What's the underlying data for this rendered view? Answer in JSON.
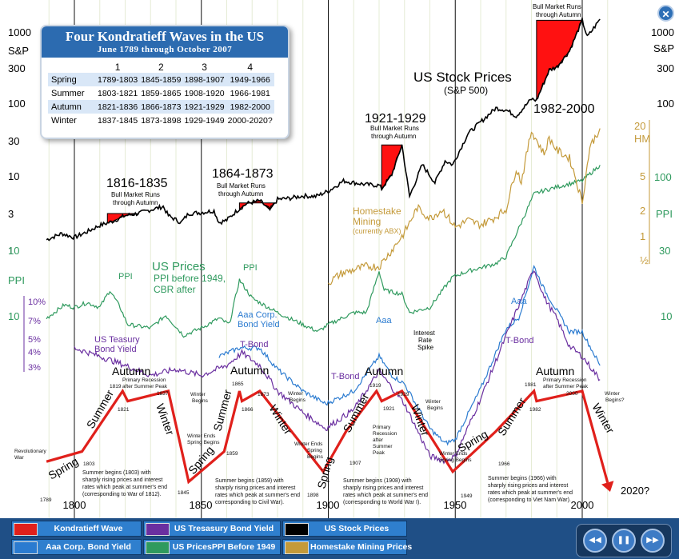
{
  "info_box": {
    "title": "Four Kondratieff Waves in the US",
    "subtitle": "June 1789 through October 2007",
    "columns": [
      "1",
      "2",
      "3",
      "4"
    ],
    "rows": [
      {
        "season": "Spring",
        "values": [
          "1789-1803",
          "1845-1859",
          "1898-1907",
          "1949-1966"
        ]
      },
      {
        "season": "Summer",
        "values": [
          "1803-1821",
          "1859-1865",
          "1908-1920",
          "1966-1981"
        ]
      },
      {
        "season": "Autumn",
        "values": [
          "1821-1836",
          "1866-1873",
          "1921-1929",
          "1982-2000"
        ]
      },
      {
        "season": "Winter",
        "values": [
          "1837-1845",
          "1873-1898",
          "1929-1949",
          "2000-2020?"
        ]
      }
    ]
  },
  "axes": {
    "sp_label": "S&P",
    "ppi_label": "PPI",
    "hm_label": "HM",
    "sp_ticks": [
      "1000",
      "300",
      "100",
      "30",
      "10",
      "3",
      "1"
    ],
    "ppi_tick": "10",
    "ppi_right_ticks": [
      "100",
      "30"
    ],
    "hm_ticks": [
      "20",
      "5",
      "2",
      "1",
      "½"
    ],
    "yield_ticks": [
      "10%",
      "7%",
      "5%",
      "4%",
      "3%"
    ],
    "x_ticks": [
      "1800",
      "1850",
      "1900",
      "1950",
      "2000"
    ]
  },
  "annotations": {
    "us_stock_prices": "US Stock Prices",
    "sp500": "(S&P 500)",
    "us_prices": "US Prices",
    "ppi_before": "PPI before 1949,",
    "cbr_after": "CBR after",
    "homestake": "Homestake",
    "mining": "Mining",
    "currently_abx": "(currently ABX)",
    "aaa_corp": "Aaa Corp.",
    "bond_yield": "Bond Yield",
    "us_treasury": "US Teasury",
    "tbond": "T-Bond",
    "aaa": "Aaa",
    "ppi": "PPI",
    "interest": "Interest",
    "rate": "Rate",
    "spike": "Spike",
    "bull_market_runs": "Bull Market Runs",
    "through_autumn": "through Autumn",
    "q2020": "2020?"
  },
  "bull_markets": [
    "1816-1835",
    "1864-1873",
    "1921-1929",
    "1982-2000"
  ],
  "seasons": {
    "spring": "Spring",
    "summer": "Summer",
    "autumn": "Autumn",
    "winter": "Winter"
  },
  "wave_labels": {
    "revolutionary": "Revolutionary",
    "war": "War",
    "y1789": "1789",
    "y1803": "1803",
    "y1819": "1819",
    "y1821": "1821",
    "y1837": "1837",
    "y1845": "1845",
    "y1859": "1859",
    "y1865": "1865",
    "y1866": "1866",
    "y1873": "1873",
    "y1898": "1898",
    "y1907": "1907",
    "y1919": "1919",
    "y1921": "1921",
    "y1929": "1929",
    "y1949": "1949",
    "y1966": "1966",
    "y1981": "1981",
    "y1982": "1982",
    "y2000": "2000",
    "primary_recession": "Primary Recession",
    "after_summer_peak": "after Summer Peak",
    "winter": "Winter",
    "begins": "Begins",
    "begins_q": "Begins?",
    "winter_ends": "Winter Ends",
    "spring_begins": "Spring Begins",
    "spring": "Spring",
    "primary": "Primary",
    "recession": "Recession",
    "after": "after",
    "summer": "Summer",
    "peak": "Peak",
    "s1a": "Summer begins (1803) with",
    "s1b": "sharply rising prices and interest",
    "s1c": "rates which peak at summer's end",
    "s1d": "(corresponding to War of 1812).",
    "s2a": "Summer begins (1859) with",
    "s2b": "sharply rising prices and interest",
    "s2c": "rates which peak at summer's end",
    "s2d": "corresponding to Civil War).",
    "s3a": "Summer begins (1908) with",
    "s3b": "sharply rising prices and interest",
    "s3c": "rates which peak at summer's end",
    "s3d": "(corresponding to World War I).",
    "s4a": "Summer begins (1966) with",
    "s4b": "sharply rising prices and interest",
    "s4c": "rates which peak at summer's end",
    "s4d": "(corresponding to Viet Nam War)."
  },
  "legend": [
    {
      "label": "Kondratieff Wave",
      "color": "#e0201b"
    },
    {
      "label": "US Tresasury Bond Yield",
      "color": "#6a2fa0"
    },
    {
      "label": "US Stock Prices",
      "color": "#000000"
    },
    {
      "label": "Aaa Corp. Bond Yield",
      "color": "#2b7bd0"
    },
    {
      "label": "US PricesPPI Before 1949",
      "color": "#2f9a5e"
    },
    {
      "label": "Homestake Mining Prices",
      "color": "#c49a3a"
    }
  ],
  "controls": {
    "rewind": "◀◀",
    "pause": "❚❚",
    "forward": "▶▶",
    "close": "✕"
  },
  "chart_data": {
    "type": "line",
    "x_range": [
      1789,
      2007
    ],
    "scale": "log",
    "series": [
      {
        "name": "US Stock Prices",
        "axis": "S&P",
        "color": "#000000",
        "points": [
          [
            1789,
            1.4
          ],
          [
            1795,
            1.7
          ],
          [
            1800,
            1.5
          ],
          [
            1805,
            1.8
          ],
          [
            1810,
            2.2
          ],
          [
            1815,
            2.5
          ],
          [
            1820,
            3.0
          ],
          [
            1825,
            3.2
          ],
          [
            1830,
            3.6
          ],
          [
            1835,
            4.0
          ],
          [
            1837,
            3.0
          ],
          [
            1842,
            2.4
          ],
          [
            1845,
            3.2
          ],
          [
            1850,
            3.3
          ],
          [
            1855,
            3.5
          ],
          [
            1857,
            2.4
          ],
          [
            1860,
            2.6
          ],
          [
            1864,
            3.5
          ],
          [
            1868,
            4.4
          ],
          [
            1873,
            4.8
          ],
          [
            1877,
            3.6
          ],
          [
            1880,
            5.0
          ],
          [
            1885,
            5.2
          ],
          [
            1890,
            5.6
          ],
          [
            1895,
            5.5
          ],
          [
            1900,
            6.5
          ],
          [
            1906,
            9.0
          ],
          [
            1910,
            8.5
          ],
          [
            1915,
            8.0
          ],
          [
            1920,
            7.8
          ],
          [
            1921,
            7.0
          ],
          [
            1925,
            11
          ],
          [
            1929,
            28
          ],
          [
            1932,
            5.5
          ],
          [
            1937,
            15
          ],
          [
            1942,
            8.5
          ],
          [
            1946,
            17
          ],
          [
            1949,
            15
          ],
          [
            1955,
            40
          ],
          [
            1960,
            58
          ],
          [
            1966,
            90
          ],
          [
            1970,
            85
          ],
          [
            1974,
            70
          ],
          [
            1980,
            120
          ],
          [
            1982,
            115
          ],
          [
            1987,
            300
          ],
          [
            1990,
            330
          ],
          [
            1995,
            550
          ],
          [
            2000,
            1450
          ],
          [
            2002,
            850
          ],
          [
            2007,
            1500
          ]
        ]
      },
      {
        "name": "US Prices",
        "axis": "PPI",
        "color": "#2f9a5e",
        "points": [
          [
            1789,
            10
          ],
          [
            1796,
            12.5
          ],
          [
            1800,
            12
          ],
          [
            1805,
            13
          ],
          [
            1810,
            12
          ],
          [
            1814,
            16
          ],
          [
            1818,
            12
          ],
          [
            1821,
            9
          ],
          [
            1830,
            8.5
          ],
          [
            1836,
            10.5
          ],
          [
            1843,
            7.5
          ],
          [
            1850,
            8.5
          ],
          [
            1857,
            10
          ],
          [
            1861,
            9
          ],
          [
            1865,
            19
          ],
          [
            1870,
            14
          ],
          [
            1873,
            13
          ],
          [
            1880,
            11
          ],
          [
            1890,
            9
          ],
          [
            1896,
            8
          ],
          [
            1900,
            9
          ],
          [
            1910,
            11
          ],
          [
            1915,
            11
          ],
          [
            1920,
            22
          ],
          [
            1922,
            16
          ],
          [
            1929,
            15
          ],
          [
            1932,
            11
          ],
          [
            1940,
            12
          ],
          [
            1945,
            16
          ],
          [
            1949,
            20
          ],
          [
            1955,
            22
          ],
          [
            1966,
            25
          ],
          [
            1970,
            28
          ],
          [
            1975,
            45
          ],
          [
            1981,
            80
          ],
          [
            1985,
            85
          ],
          [
            1990,
            90
          ],
          [
            1995,
            95
          ],
          [
            2000,
            100
          ],
          [
            2007,
            130
          ]
        ]
      },
      {
        "name": "Aaa Corp. Bond Yield",
        "axis": "Yield",
        "color": "#2b7bd0",
        "points": [
          [
            1857,
            6.0
          ],
          [
            1865,
            6.5
          ],
          [
            1873,
            6.5
          ],
          [
            1880,
            5.3
          ],
          [
            1890,
            4.3
          ],
          [
            1899,
            3.8
          ],
          [
            1910,
            4.3
          ],
          [
            1920,
            6.0
          ],
          [
            1925,
            5.0
          ],
          [
            1930,
            4.6
          ],
          [
            1940,
            3.0
          ],
          [
            1946,
            2.6
          ],
          [
            1950,
            2.7
          ],
          [
            1960,
            4.4
          ],
          [
            1970,
            7.8
          ],
          [
            1975,
            8.7
          ],
          [
            1981,
            14.2
          ],
          [
            1985,
            11.4
          ],
          [
            1990,
            9.3
          ],
          [
            1995,
            7.6
          ],
          [
            2000,
            7.6
          ],
          [
            2007,
            5.5
          ]
        ]
      },
      {
        "name": "US Tresasury Bond Yield",
        "axis": "Yield",
        "color": "#6a2fa0",
        "points": [
          [
            1800,
            6.5
          ],
          [
            1810,
            6.0
          ],
          [
            1820,
            5.5
          ],
          [
            1830,
            5.0
          ],
          [
            1840,
            5.3
          ],
          [
            1850,
            5.0
          ],
          [
            1860,
            5.5
          ],
          [
            1866,
            6.2
          ],
          [
            1873,
            5.5
          ],
          [
            1880,
            4.3
          ],
          [
            1890,
            3.5
          ],
          [
            1899,
            3.0
          ],
          [
            1910,
            3.6
          ],
          [
            1920,
            5.2
          ],
          [
            1930,
            3.8
          ],
          [
            1940,
            2.3
          ],
          [
            1946,
            2.2
          ],
          [
            1950,
            2.3
          ],
          [
            1960,
            4.0
          ],
          [
            1970,
            7.3
          ],
          [
            1981,
            13.9
          ],
          [
            1985,
            10.6
          ],
          [
            1990,
            8.6
          ],
          [
            1995,
            6.6
          ],
          [
            2000,
            6.0
          ],
          [
            2007,
            4.8
          ]
        ]
      },
      {
        "name": "Homestake Mining Prices",
        "axis": "HM",
        "color": "#c49a3a",
        "points": [
          [
            1900,
            0.4
          ],
          [
            1905,
            0.5
          ],
          [
            1910,
            0.55
          ],
          [
            1915,
            0.6
          ],
          [
            1920,
            0.6
          ],
          [
            1925,
            0.9
          ],
          [
            1930,
            1.4
          ],
          [
            1935,
            2.6
          ],
          [
            1940,
            2.0
          ],
          [
            1945,
            2.5
          ],
          [
            1950,
            1.6
          ],
          [
            1955,
            1.9
          ],
          [
            1960,
            1.7
          ],
          [
            1965,
            2.0
          ],
          [
            1970,
            2.5
          ],
          [
            1974,
            7
          ],
          [
            1976,
            5
          ],
          [
            1980,
            18
          ],
          [
            1985,
            10
          ],
          [
            1987,
            15
          ],
          [
            1990,
            11
          ],
          [
            1995,
            9
          ],
          [
            1997,
            6
          ],
          [
            2000,
            3
          ],
          [
            2003,
            12
          ],
          [
            2007,
            19
          ]
        ]
      }
    ],
    "wave": [
      [
        1789,
        3
      ],
      [
        1803,
        4
      ],
      [
        1819,
        10
      ],
      [
        1821,
        9
      ],
      [
        1837,
        10
      ],
      [
        1845,
        1
      ],
      [
        1859,
        4
      ],
      [
        1865,
        10
      ],
      [
        1866,
        9
      ],
      [
        1873,
        10
      ],
      [
        1898,
        2
      ],
      [
        1907,
        6
      ],
      [
        1919,
        10
      ],
      [
        1921,
        9
      ],
      [
        1929,
        10
      ],
      [
        1949,
        2
      ],
      [
        1966,
        6
      ],
      [
        1981,
        10
      ],
      [
        1982,
        9
      ],
      [
        2000,
        10
      ],
      [
        2011,
        0
      ]
    ]
  }
}
